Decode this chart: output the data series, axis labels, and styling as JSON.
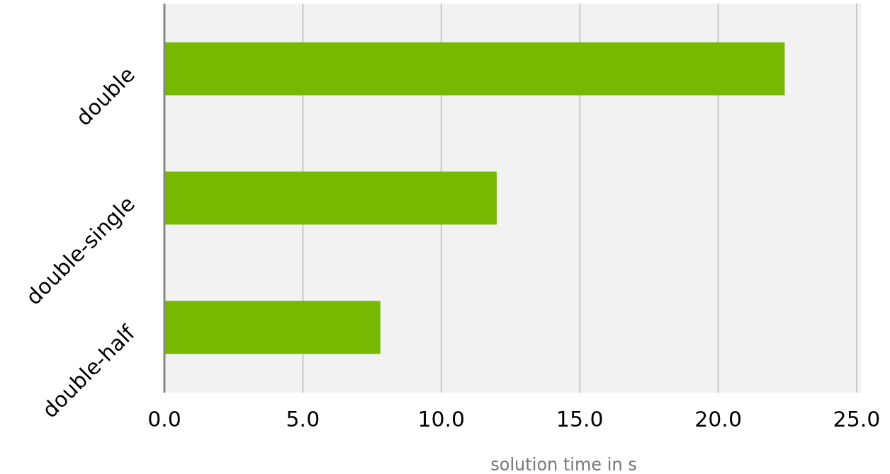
{
  "chart_data": {
    "type": "bar",
    "orientation": "horizontal",
    "categories": [
      "double",
      "double-single",
      "double-half"
    ],
    "values": [
      22.4,
      12.0,
      7.8
    ],
    "color": "#76b900",
    "xlabel": "solution time in s",
    "xlim": [
      0,
      25
    ],
    "xticks": [
      {
        "value": 0,
        "label": "0.0"
      },
      {
        "value": 5,
        "label": "5.0"
      },
      {
        "value": 10,
        "label": "10.0"
      },
      {
        "value": 15,
        "label": "15.0"
      },
      {
        "value": 20,
        "label": "20.0"
      },
      {
        "value": 25,
        "label": "25.0"
      }
    ],
    "grid": "x"
  }
}
